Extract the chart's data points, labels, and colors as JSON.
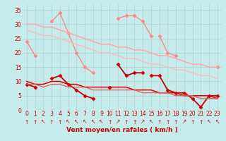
{
  "bg_color": "#c5eceb",
  "grid_color": "#b0d0d0",
  "xlabel": "Vent moyen/en rafales ( km/h )",
  "xlabel_color": "#cc0000",
  "ylabel_ticks": [
    0,
    5,
    10,
    15,
    20,
    25,
    30,
    35
  ],
  "xlim": [
    -0.5,
    23.5
  ],
  "ylim": [
    0,
    37
  ],
  "x": [
    0,
    1,
    2,
    3,
    4,
    5,
    6,
    7,
    8,
    9,
    10,
    11,
    12,
    13,
    14,
    15,
    16,
    17,
    18,
    19,
    20,
    21,
    22,
    23
  ],
  "series": [
    {
      "y": [
        24,
        19,
        null,
        null,
        null,
        null,
        null,
        null,
        null,
        null,
        null,
        null,
        null,
        null,
        null,
        null,
        null,
        null,
        null,
        null,
        null,
        null,
        null,
        15
      ],
      "color": "#ff8888",
      "marker": "D",
      "markersize": 2.5,
      "linewidth": 1.0
    },
    {
      "y": [
        null,
        null,
        null,
        31,
        34,
        27,
        20,
        15,
        13,
        null,
        null,
        32,
        33,
        33,
        31,
        26,
        null,
        null,
        null,
        null,
        null,
        null,
        null,
        null
      ],
      "color": "#ff8888",
      "marker": "D",
      "markersize": 2.5,
      "linewidth": 1.0
    },
    {
      "y": [
        null,
        null,
        null,
        null,
        null,
        null,
        null,
        null,
        null,
        null,
        null,
        null,
        null,
        null,
        null,
        null,
        26,
        20,
        19,
        null,
        null,
        null,
        null,
        null
      ],
      "color": "#ff8888",
      "marker": "D",
      "markersize": 2.5,
      "linewidth": 1.0
    },
    {
      "y": [
        30,
        30,
        29,
        29,
        28,
        27,
        26,
        25,
        24,
        23,
        23,
        22,
        22,
        21,
        21,
        20,
        19,
        19,
        18,
        17,
        16,
        16,
        15,
        15
      ],
      "color": "#ffaaaa",
      "marker": null,
      "markersize": 0,
      "linewidth": 1.2
    },
    {
      "y": [
        28,
        27,
        26,
        26,
        25,
        24,
        23,
        22,
        21,
        20,
        20,
        19,
        18,
        18,
        17,
        16,
        16,
        15,
        14,
        14,
        13,
        12,
        12,
        11
      ],
      "color": "#ffbbbb",
      "marker": null,
      "markersize": 0,
      "linewidth": 1.0
    },
    {
      "y": [
        9,
        8,
        null,
        11,
        12,
        9,
        7,
        5,
        4,
        null,
        null,
        16,
        12,
        13,
        13,
        null,
        null,
        null,
        null,
        null,
        null,
        null,
        null,
        null
      ],
      "color": "#cc0000",
      "marker": "D",
      "markersize": 2.5,
      "linewidth": 1.3
    },
    {
      "y": [
        null,
        null,
        null,
        null,
        null,
        null,
        null,
        null,
        null,
        null,
        8,
        null,
        null,
        null,
        null,
        12,
        12,
        7,
        6,
        6,
        4,
        1,
        5,
        5
      ],
      "color": "#cc0000",
      "marker": "D",
      "markersize": 2.5,
      "linewidth": 1.3
    },
    {
      "y": [
        10,
        9,
        9,
        10,
        10,
        9,
        9,
        8,
        8,
        8,
        8,
        8,
        8,
        7,
        7,
        7,
        6,
        6,
        6,
        5,
        5,
        5,
        5,
        4
      ],
      "color": "#dd0000",
      "marker": null,
      "markersize": 0,
      "linewidth": 1.1
    },
    {
      "y": [
        9,
        9,
        8,
        9,
        9,
        8,
        8,
        8,
        7,
        7,
        7,
        7,
        7,
        7,
        6,
        6,
        6,
        6,
        5,
        5,
        5,
        4,
        4,
        4
      ],
      "color": "#ee5555",
      "marker": null,
      "markersize": 0,
      "linewidth": 0.9
    }
  ],
  "arrow_chars": [
    "↑",
    "↑",
    "↖",
    "↑",
    "↑",
    "↖",
    "↖",
    "↖",
    "↖",
    "↖",
    "↑",
    "↗",
    "↑",
    "↑",
    "↗",
    "↖",
    "↑",
    "↑",
    "↑",
    "↗",
    "↑",
    "↑",
    "↖",
    "↖"
  ],
  "tick_label_color": "#cc0000",
  "tick_label_fontsize": 5.5,
  "arrow_fontsize": 5.5
}
